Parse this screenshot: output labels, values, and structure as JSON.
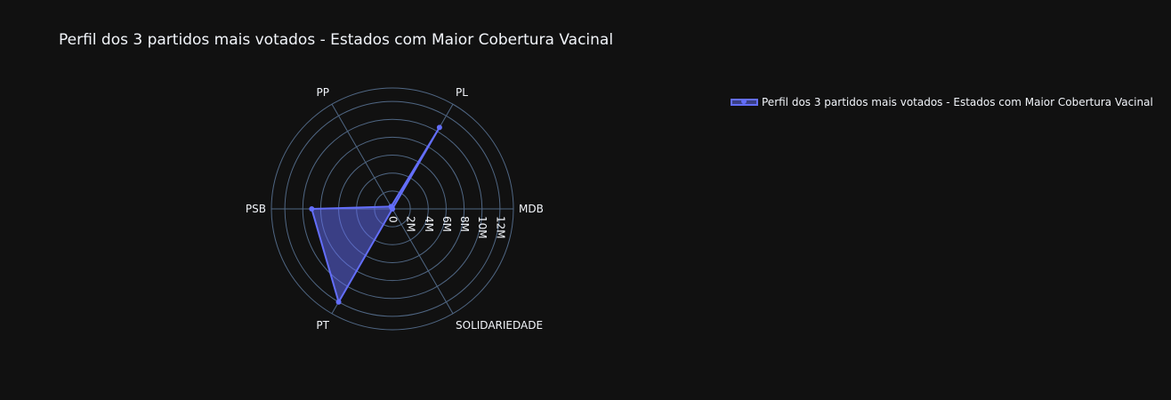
{
  "chart_data": {
    "type": "radar",
    "title": "Perfil dos 3 partidos mais votados - Estados com Maior Cobertura Vacinal",
    "categories": [
      "MDB",
      "PL",
      "PP",
      "PSB",
      "PT",
      "SOLIDARIEDADE"
    ],
    "radial_range": [
      0,
      13500000
    ],
    "radial_ticks": [
      0,
      2000000,
      4000000,
      6000000,
      8000000,
      10000000,
      12000000
    ],
    "radial_tick_labels": [
      "0",
      "2M",
      "4M",
      "6M",
      "8M",
      "10M",
      "12M"
    ],
    "series": [
      {
        "name": "Perfil dos 3 partidos mais votados - Estados com Maior Cobertura Vacinal",
        "values": [
          0,
          10500000,
          300000,
          9000000,
          12000000,
          0
        ]
      }
    ],
    "legend_position": "top-right",
    "grid": true,
    "colors": {
      "background": "#111111",
      "grid": "#506784",
      "series_line": "#636efa",
      "series_fill": "#636efa",
      "text": "#f2f5fa"
    }
  }
}
